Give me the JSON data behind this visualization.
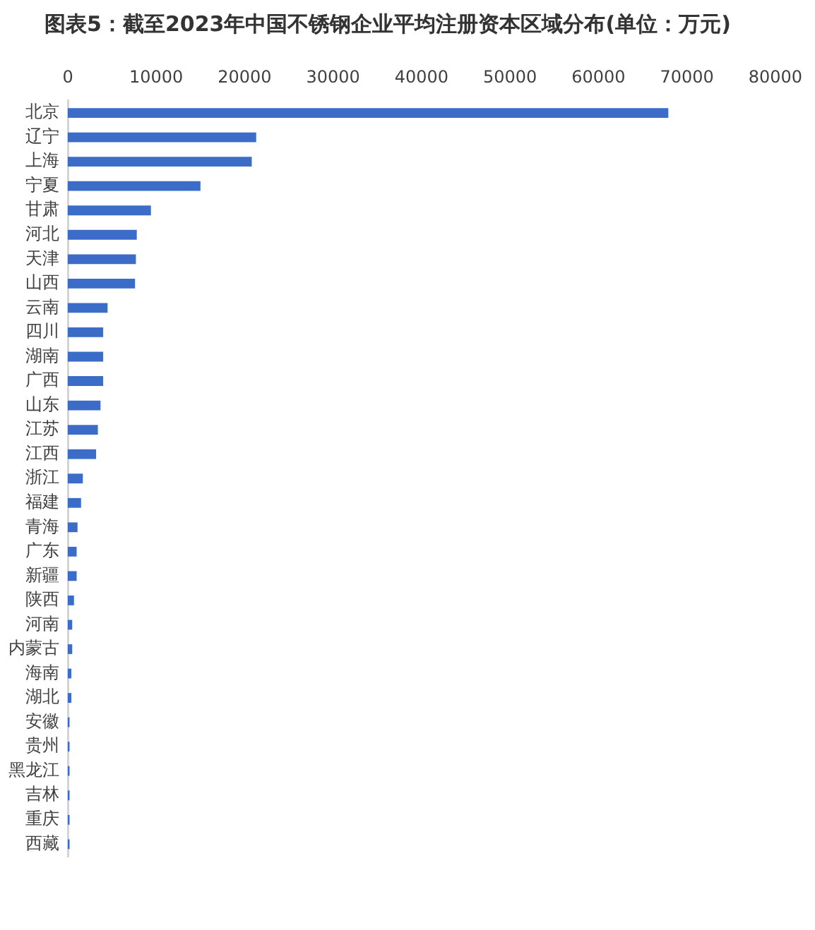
{
  "chart_data": {
    "type": "bar",
    "orientation": "horizontal",
    "title": "图表5：截至2023年中国不锈钢企业平均注册资本区域分布(单位：万元)",
    "categories": [
      "北京",
      "辽宁",
      "上海",
      "宁夏",
      "甘肃",
      "河北",
      "天津",
      "山西",
      "云南",
      "四川",
      "湖南",
      "广西",
      "山东",
      "江苏",
      "江西",
      "浙江",
      "福建",
      "青海",
      "广东",
      "新疆",
      "陕西",
      "河南",
      "内蒙古",
      "海南",
      "湖北",
      "安徽",
      "贵州",
      "黑龙江",
      "吉林",
      "重庆",
      "西藏"
    ],
    "values": [
      67900,
      21300,
      20800,
      15000,
      9400,
      7800,
      7700,
      7600,
      4500,
      4000,
      4000,
      4000,
      3700,
      3400,
      3200,
      1700,
      1500,
      1100,
      1000,
      1000,
      700,
      500,
      500,
      400,
      400,
      200,
      200,
      200,
      200,
      200,
      200
    ],
    "color": "#3a6cc8",
    "xlim": [
      0,
      80000
    ],
    "xticks": [
      0,
      10000,
      20000,
      30000,
      40000,
      50000,
      60000,
      70000,
      80000
    ]
  }
}
